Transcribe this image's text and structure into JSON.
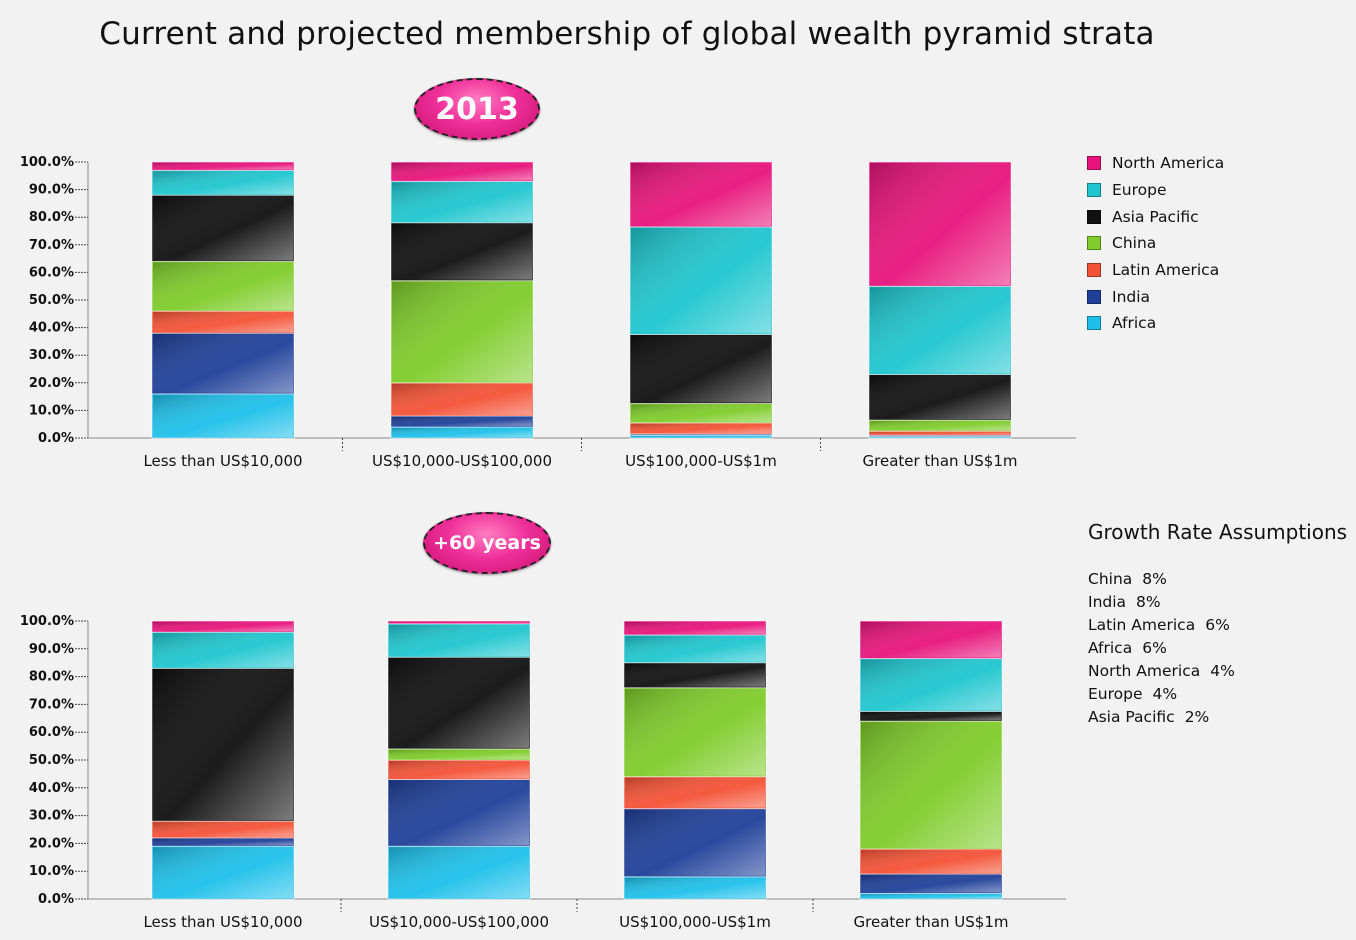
{
  "title": "Current and projected membership of global wealth pyramid strata",
  "badges": {
    "current": "2013",
    "projected": "+60 years"
  },
  "legend": [
    {
      "name": "North America",
      "color": "#e8147c"
    },
    {
      "name": "Europe",
      "color": "#1fc6cf"
    },
    {
      "name": "Asia Pacific",
      "color": "#101010"
    },
    {
      "name": "China",
      "color": "#7fcc2a"
    },
    {
      "name": "Latin America",
      "color": "#f45236"
    },
    {
      "name": "India",
      "color": "#1f3f99"
    },
    {
      "name": "Africa",
      "color": "#1ec0ea"
    }
  ],
  "growth": {
    "title": "Growth Rate Assumptions",
    "rows": [
      {
        "region": "China",
        "rate": "8%"
      },
      {
        "region": "India",
        "rate": "8%"
      },
      {
        "region": "Latin America",
        "rate": "6%"
      },
      {
        "region": "Africa",
        "rate": "6%"
      },
      {
        "region": "North America",
        "rate": "4%"
      },
      {
        "region": "Europe",
        "rate": "4%"
      },
      {
        "region": "Asia Pacific",
        "rate": "2%"
      }
    ]
  },
  "chart_data": [
    {
      "type": "bar",
      "stacked": true,
      "title": "2013",
      "categories": [
        "Less than US$10,000",
        "US$10,000-US$100,000",
        "US$100,000-US$1m",
        "Greater than US$1m"
      ],
      "ylim": [
        0,
        100
      ],
      "yticks": [
        "0.0%",
        "10.0%",
        "20.0%",
        "30.0%",
        "40.0%",
        "50.0%",
        "60.0%",
        "70.0%",
        "80.0%",
        "90.0%",
        "100.0%"
      ],
      "series": [
        {
          "name": "Africa",
          "values": [
            16,
            4,
            1,
            0.5
          ]
        },
        {
          "name": "India",
          "values": [
            22,
            4,
            0.5,
            0.5
          ]
        },
        {
          "name": "Latin America",
          "values": [
            8,
            12,
            4,
            1.5
          ]
        },
        {
          "name": "China",
          "values": [
            18,
            37,
            7,
            4
          ]
        },
        {
          "name": "Asia Pacific",
          "values": [
            24,
            21,
            25,
            16.5
          ]
        },
        {
          "name": "Europe",
          "values": [
            9,
            15,
            39,
            32
          ]
        },
        {
          "name": "North America",
          "values": [
            3,
            7,
            23.5,
            45
          ]
        }
      ]
    },
    {
      "type": "bar",
      "stacked": true,
      "title": "+60 years",
      "categories": [
        "Less than US$10,000",
        "US$10,000-US$100,000",
        "US$100,000-US$1m",
        "Greater than US$1m"
      ],
      "ylim": [
        0,
        100
      ],
      "yticks": [
        "0.0%",
        "10.0%",
        "20.0%",
        "30.0%",
        "40.0%",
        "50.0%",
        "60.0%",
        "70.0%",
        "80.0%",
        "90.0%",
        "100.0%"
      ],
      "series": [
        {
          "name": "Africa",
          "values": [
            19,
            19,
            8,
            2
          ]
        },
        {
          "name": "India",
          "values": [
            3,
            24,
            24.5,
            7
          ]
        },
        {
          "name": "Latin America",
          "values": [
            6,
            7,
            11.5,
            9
          ]
        },
        {
          "name": "China",
          "values": [
            0,
            4,
            32,
            46
          ]
        },
        {
          "name": "Asia Pacific",
          "values": [
            55,
            33,
            9,
            3.5
          ]
        },
        {
          "name": "Europe",
          "values": [
            13,
            12,
            10,
            19
          ]
        },
        {
          "name": "North America",
          "values": [
            4,
            1,
            5,
            13.5
          ]
        }
      ]
    }
  ]
}
